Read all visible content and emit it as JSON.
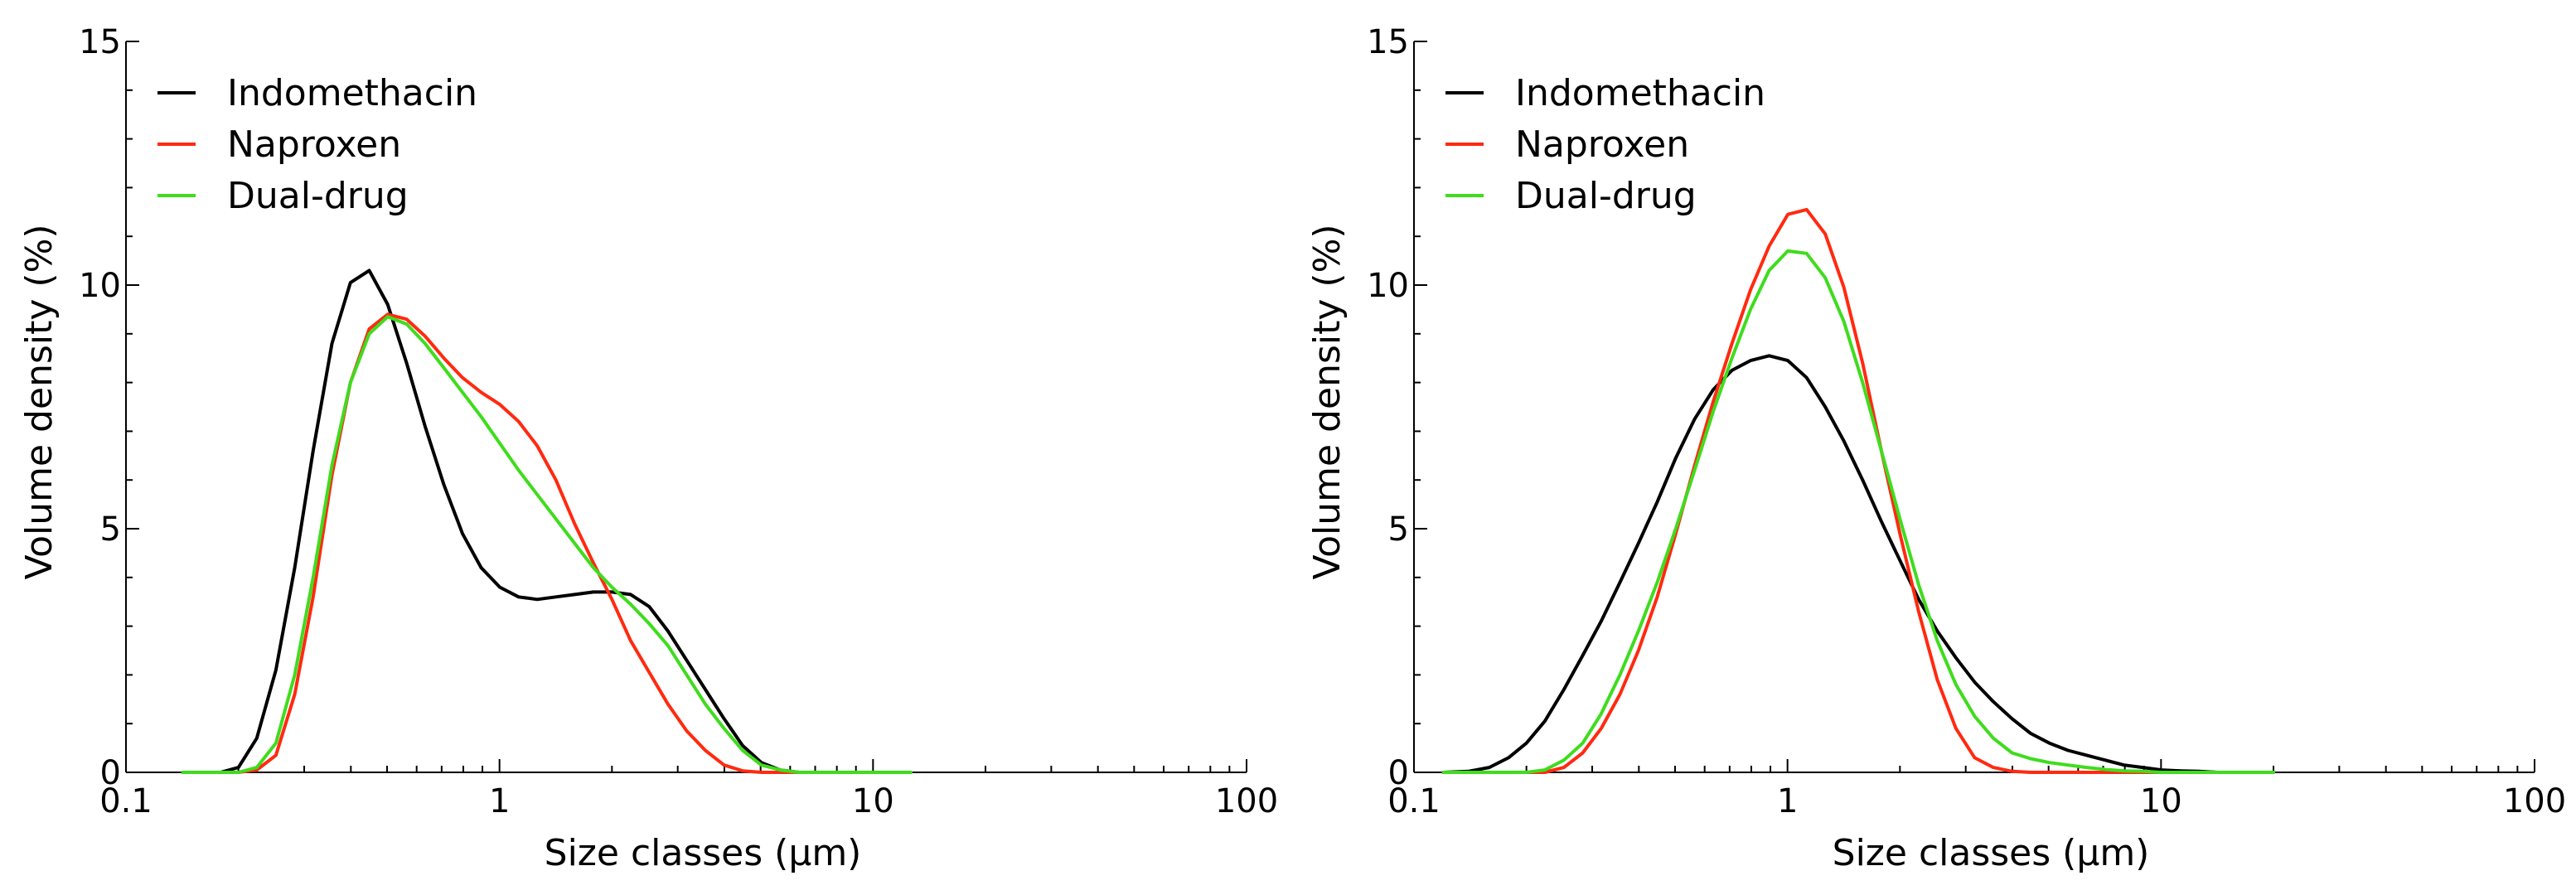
{
  "chart_data": [
    {
      "type": "line",
      "x_scale": "log",
      "xlabel": "Size classes (µm)",
      "ylabel": "Volume density (%)",
      "xlim": [
        0.1,
        100
      ],
      "ylim": [
        0,
        15
      ],
      "x_ticks": [
        0.1,
        1,
        10,
        100
      ],
      "x_tick_labels": [
        "0.1",
        "1",
        "10",
        "100"
      ],
      "y_ticks": [
        0,
        5,
        10,
        15
      ],
      "y_tick_labels": [
        "0",
        "5",
        "10",
        "15"
      ],
      "legend_position": "top-left",
      "series": [
        {
          "name": "Indomethacin",
          "color": "#000000",
          "x": [
            0.142,
            0.179,
            0.2,
            0.224,
            0.252,
            0.283,
            0.317,
            0.356,
            0.399,
            0.448,
            0.502,
            0.564,
            0.632,
            0.71,
            0.796,
            0.893,
            1.002,
            1.125,
            1.262,
            1.416,
            1.589,
            1.783,
            2.0,
            2.244,
            2.518,
            2.825,
            3.17,
            3.557,
            3.991,
            4.477,
            5.024,
            5.637,
            6.325,
            7.096
          ],
          "values": [
            0,
            0,
            0.1,
            0.7,
            2.1,
            4.2,
            6.6,
            8.8,
            10.05,
            10.3,
            9.6,
            8.4,
            7.1,
            5.9,
            4.9,
            4.2,
            3.8,
            3.6,
            3.55,
            3.6,
            3.65,
            3.7,
            3.7,
            3.65,
            3.4,
            2.9,
            2.3,
            1.7,
            1.1,
            0.55,
            0.2,
            0.05,
            0,
            0
          ]
        },
        {
          "name": "Naproxen",
          "color": "#ff2a10",
          "x": [
            0.2,
            0.224,
            0.252,
            0.283,
            0.317,
            0.356,
            0.399,
            0.448,
            0.502,
            0.564,
            0.632,
            0.71,
            0.796,
            0.893,
            1.002,
            1.125,
            1.262,
            1.416,
            1.589,
            1.783,
            2.0,
            2.244,
            2.518,
            2.825,
            3.17,
            3.557,
            3.991,
            4.477,
            5.024,
            5.637,
            6.325
          ],
          "values": [
            0,
            0.05,
            0.35,
            1.6,
            3.6,
            6.1,
            8.0,
            9.1,
            9.4,
            9.3,
            8.95,
            8.5,
            8.1,
            7.8,
            7.55,
            7.2,
            6.7,
            6.0,
            5.1,
            4.3,
            3.55,
            2.7,
            2.05,
            1.4,
            0.85,
            0.45,
            0.15,
            0.03,
            0,
            0,
            0
          ]
        },
        {
          "name": "Dual-drug",
          "color": "#3fdc1e",
          "x": [
            0.142,
            0.179,
            0.2,
            0.224,
            0.252,
            0.283,
            0.317,
            0.356,
            0.399,
            0.448,
            0.502,
            0.564,
            0.632,
            0.71,
            0.796,
            0.893,
            1.002,
            1.125,
            1.262,
            1.416,
            1.589,
            1.783,
            2.0,
            2.244,
            2.518,
            2.825,
            3.17,
            3.557,
            3.991,
            4.477,
            5.024,
            5.637,
            6.325,
            7.096,
            7.962,
            8.934,
            10.02,
            11.25,
            12.62
          ],
          "values": [
            0,
            0,
            0,
            0.1,
            0.6,
            2.0,
            4.0,
            6.3,
            8.0,
            9.0,
            9.35,
            9.2,
            8.8,
            8.3,
            7.8,
            7.3,
            6.75,
            6.2,
            5.7,
            5.2,
            4.7,
            4.2,
            3.8,
            3.45,
            3.05,
            2.6,
            2.0,
            1.4,
            0.9,
            0.45,
            0.15,
            0.05,
            0,
            0,
            0,
            0,
            0,
            0,
            0
          ]
        }
      ]
    },
    {
      "type": "line",
      "x_scale": "log",
      "xlabel": "Size classes (µm)",
      "ylabel": "Volume density (%)",
      "xlim": [
        0.1,
        100
      ],
      "ylim": [
        0,
        15
      ],
      "x_ticks": [
        0.1,
        1,
        10,
        100
      ],
      "x_tick_labels": [
        "0.1",
        "1",
        "10",
        "100"
      ],
      "y_ticks": [
        0,
        5,
        10,
        15
      ],
      "y_tick_labels": [
        "0",
        "5",
        "10",
        "15"
      ],
      "legend_position": "top-left",
      "series": [
        {
          "name": "Indomethacin",
          "color": "#000000",
          "x": [
            0.12,
            0.14,
            0.159,
            0.179,
            0.2,
            0.224,
            0.252,
            0.283,
            0.317,
            0.356,
            0.399,
            0.448,
            0.502,
            0.564,
            0.632,
            0.71,
            0.796,
            0.893,
            1.002,
            1.125,
            1.262,
            1.416,
            1.589,
            1.783,
            2.0,
            2.244,
            2.518,
            2.825,
            3.17,
            3.557,
            3.991,
            4.477,
            5.024,
            5.637,
            6.325,
            7.096,
            7.962,
            8.934,
            10.02,
            11.25,
            12.62,
            14.16,
            15.89,
            17.83,
            20.0
          ],
          "values": [
            0,
            0.02,
            0.1,
            0.3,
            0.6,
            1.05,
            1.7,
            2.4,
            3.1,
            3.9,
            4.7,
            5.55,
            6.45,
            7.25,
            7.85,
            8.25,
            8.45,
            8.55,
            8.45,
            8.1,
            7.5,
            6.8,
            6.0,
            5.15,
            4.35,
            3.55,
            2.9,
            2.35,
            1.85,
            1.45,
            1.1,
            0.8,
            0.6,
            0.45,
            0.35,
            0.25,
            0.15,
            0.1,
            0.05,
            0.03,
            0.02,
            0,
            0,
            0,
            0
          ]
        },
        {
          "name": "Naproxen",
          "color": "#ff2a10",
          "x": [
            0.12,
            0.14,
            0.159,
            0.179,
            0.2,
            0.224,
            0.252,
            0.283,
            0.317,
            0.356,
            0.399,
            0.448,
            0.502,
            0.564,
            0.632,
            0.71,
            0.796,
            0.893,
            1.002,
            1.125,
            1.262,
            1.416,
            1.589,
            1.783,
            2.0,
            2.244,
            2.518,
            2.825,
            3.17,
            3.557,
            3.991,
            4.477,
            5.024,
            5.637,
            6.325,
            7.096,
            7.962,
            8.934,
            10.02,
            11.25,
            12.62,
            14.16,
            15.89,
            17.83,
            20.0
          ],
          "values": [
            0,
            0,
            0,
            0,
            0,
            0,
            0.1,
            0.4,
            0.9,
            1.6,
            2.5,
            3.6,
            4.9,
            6.3,
            7.6,
            8.8,
            9.9,
            10.8,
            11.45,
            11.55,
            11.05,
            9.95,
            8.4,
            6.6,
            4.9,
            3.3,
            1.9,
            0.9,
            0.3,
            0.1,
            0.02,
            0,
            0,
            0,
            0,
            0,
            0,
            0,
            0,
            0,
            0,
            0,
            0,
            0,
            0
          ]
        },
        {
          "name": "Dual-drug",
          "color": "#3fdc1e",
          "x": [
            0.12,
            0.14,
            0.159,
            0.179,
            0.2,
            0.224,
            0.252,
            0.283,
            0.317,
            0.356,
            0.399,
            0.448,
            0.502,
            0.564,
            0.632,
            0.71,
            0.796,
            0.893,
            1.002,
            1.125,
            1.262,
            1.416,
            1.589,
            1.783,
            2.0,
            2.244,
            2.518,
            2.825,
            3.17,
            3.557,
            3.991,
            4.477,
            5.024,
            5.637,
            6.325,
            7.096,
            7.962,
            8.934,
            10.02,
            11.25,
            12.62,
            14.16,
            15.89,
            17.83,
            20.0
          ],
          "values": [
            0,
            0,
            0,
            0,
            0,
            0.05,
            0.25,
            0.6,
            1.2,
            2.0,
            2.9,
            3.9,
            5.0,
            6.2,
            7.4,
            8.5,
            9.5,
            10.3,
            10.7,
            10.65,
            10.15,
            9.25,
            8.0,
            6.6,
            5.2,
            3.85,
            2.7,
            1.8,
            1.15,
            0.7,
            0.4,
            0.28,
            0.2,
            0.15,
            0.1,
            0.06,
            0.03,
            0.02,
            0,
            0,
            0,
            0,
            0,
            0,
            0
          ]
        }
      ]
    }
  ]
}
